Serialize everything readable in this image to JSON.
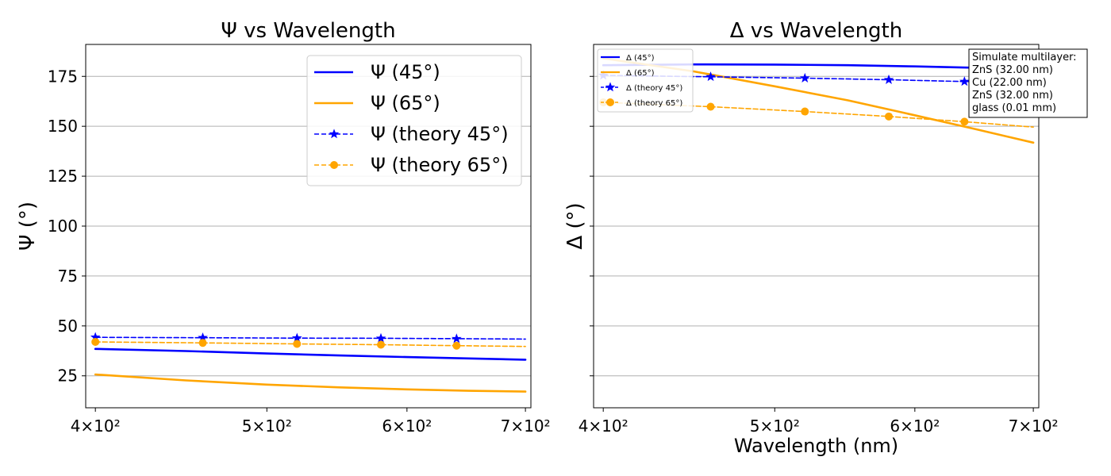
{
  "chart_data": [
    {
      "type": "line",
      "title": "Ψ vs Wavelength",
      "xlabel": "",
      "ylabel": "Ψ (°)",
      "xscale": "log",
      "xlim": [
        395,
        705
      ],
      "ylim": [
        9,
        191
      ],
      "xticks": [
        400,
        500,
        600,
        700
      ],
      "xtick_labels": [
        "4×10²",
        "5×10²",
        "6×10²",
        "7×10²"
      ],
      "yticks": [
        25,
        50,
        75,
        100,
        125,
        150,
        175
      ],
      "ytick_labels": [
        "25",
        "50",
        "75",
        "100",
        "125",
        "150",
        "175"
      ],
      "grid": "y",
      "legend_position": "top-right",
      "series": [
        {
          "name": "Ψ (45°)",
          "color": "#0000ff",
          "style": "solid",
          "marker": "none",
          "x": [
            400,
            450,
            500,
            550,
            600,
            650,
            700
          ],
          "y": [
            38.5,
            37.4,
            36.2,
            35.2,
            34.4,
            33.7,
            33.1
          ]
        },
        {
          "name": "Ψ (65°)",
          "color": "#ffa500",
          "style": "solid",
          "marker": "none",
          "x": [
            400,
            450,
            500,
            550,
            600,
            650,
            700
          ],
          "y": [
            25.7,
            22.7,
            20.6,
            19.2,
            18.2,
            17.5,
            17.1
          ]
        },
        {
          "name": "Ψ (theory 45°)",
          "color": "#0000ff",
          "style": "dashed",
          "marker": "star",
          "x": [
            400,
            460,
            520,
            580,
            640,
            700
          ],
          "y": [
            44.3,
            44.1,
            43.9,
            43.8,
            43.6,
            43.4
          ],
          "marker_x": [
            400,
            460,
            520,
            580,
            640
          ]
        },
        {
          "name": "Ψ (theory 65°)",
          "color": "#ffa500",
          "style": "dashed",
          "marker": "circle",
          "x": [
            400,
            460,
            520,
            580,
            640,
            700
          ],
          "y": [
            42.0,
            41.5,
            41.0,
            40.6,
            40.1,
            39.7
          ],
          "marker_x": [
            400,
            460,
            520,
            580,
            640
          ]
        }
      ]
    },
    {
      "type": "line",
      "title": "Δ vs Wavelength",
      "xlabel": "Wavelength (nm)",
      "ylabel": "Δ (°)",
      "xscale": "log",
      "xlim": [
        395,
        705
      ],
      "ylim": [
        9,
        191
      ],
      "xticks": [
        400,
        500,
        600,
        700
      ],
      "xtick_labels": [
        "4×10²",
        "5×10²",
        "6×10²",
        "7×10²"
      ],
      "yticks": [
        25,
        50,
        75,
        100,
        125,
        150,
        175
      ],
      "shared_y": true,
      "grid": "y",
      "legend_position": "top-left",
      "annotation": [
        "Simulate multilayer:",
        "ZnS (32.00 nm)",
        "Cu (22.00 nm)",
        "ZnS (32.00 nm)",
        "glass (0.01 mm)"
      ],
      "series": [
        {
          "name": "Δ (45°)",
          "color": "#0000ff",
          "style": "solid",
          "marker": "none",
          "x": [
            400,
            450,
            500,
            550,
            600,
            650,
            700
          ],
          "y": [
            180.6,
            181.0,
            180.9,
            180.6,
            180.0,
            179.3,
            178.5
          ]
        },
        {
          "name": "Δ (65°)",
          "color": "#ffa500",
          "style": "solid",
          "marker": "none",
          "x": [
            400,
            450,
            500,
            550,
            600,
            650,
            700
          ],
          "y": [
            184.0,
            177.5,
            170.0,
            163.0,
            155.5,
            148.5,
            141.8
          ]
        },
        {
          "name": "Δ (theory 45°)",
          "color": "#0000ff",
          "style": "dashed",
          "marker": "star",
          "x": [
            400,
            460,
            520,
            580,
            640,
            700
          ],
          "y": [
            175.5,
            174.8,
            174.1,
            173.3,
            172.4,
            171.7
          ],
          "marker_x": [
            400,
            460,
            520,
            580,
            640
          ]
        },
        {
          "name": "Δ (theory 65°)",
          "color": "#ffa500",
          "style": "dashed",
          "marker": "circle",
          "x": [
            400,
            460,
            520,
            580,
            640,
            700
          ],
          "y": [
            162.0,
            159.8,
            157.4,
            154.9,
            152.3,
            149.6
          ],
          "marker_x": [
            400,
            460,
            520,
            580,
            640
          ]
        }
      ]
    }
  ]
}
